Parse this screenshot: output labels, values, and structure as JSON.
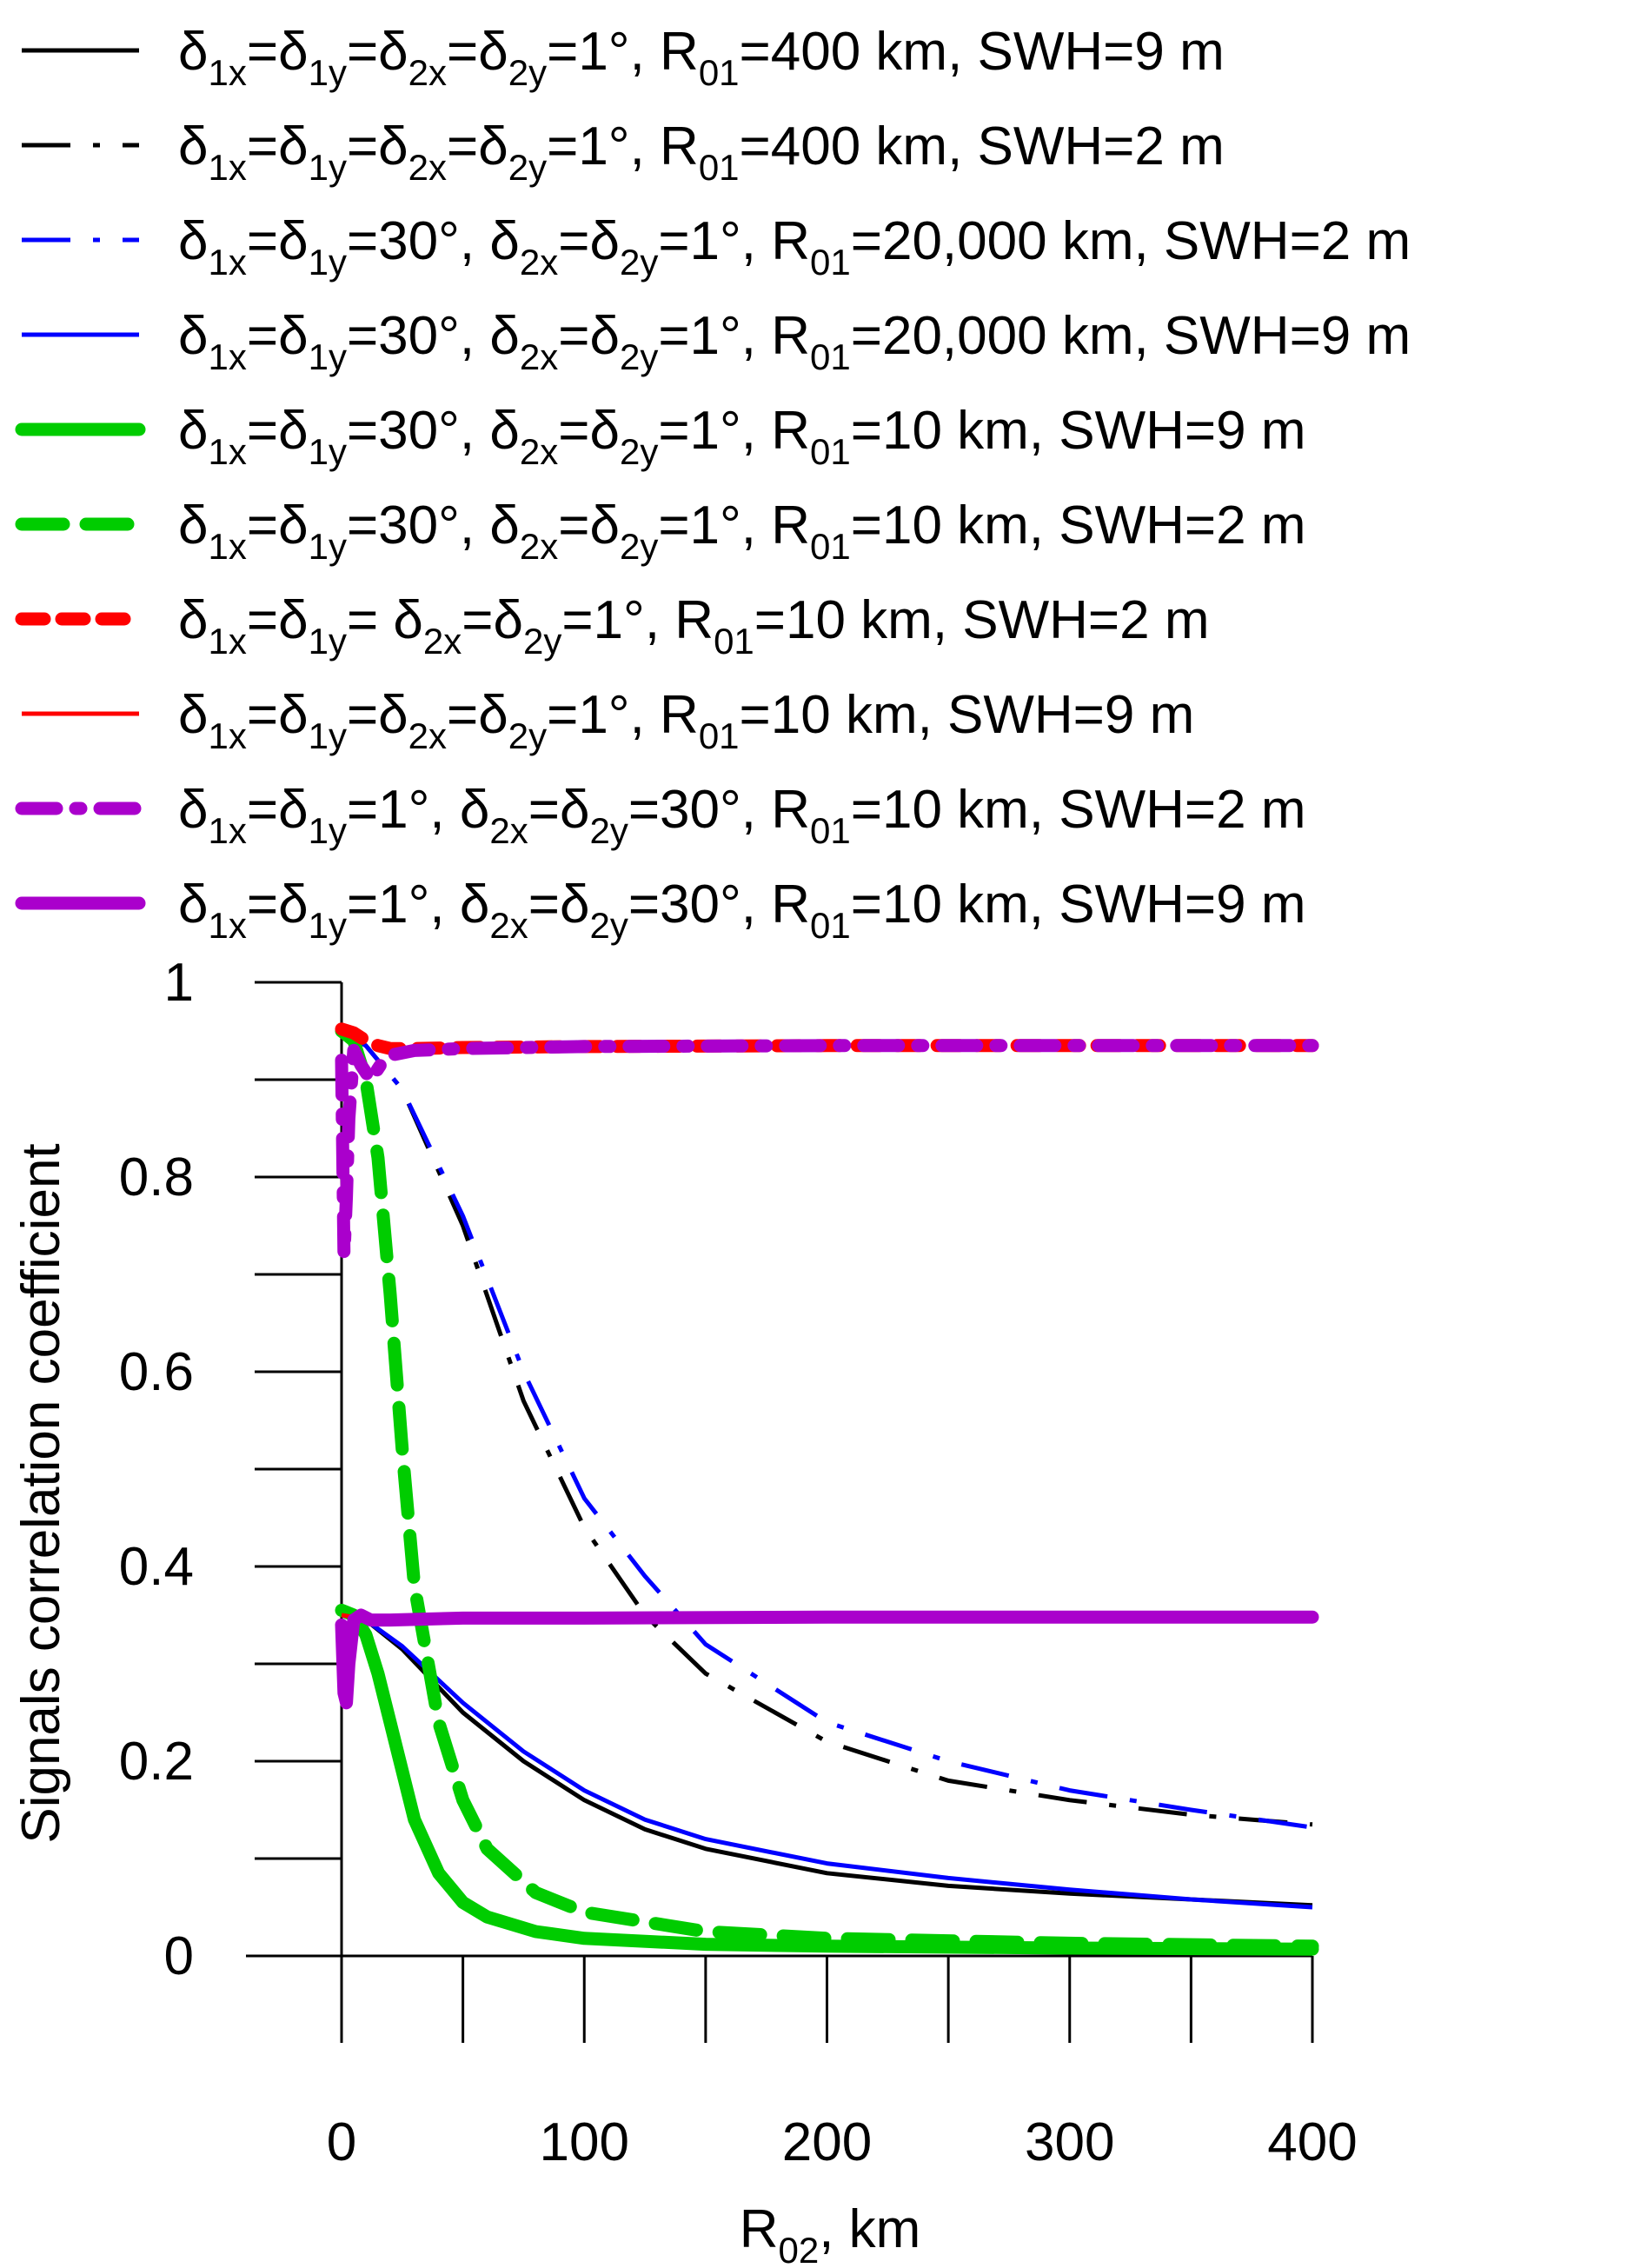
{
  "chart_data": {
    "type": "line",
    "title": "",
    "xlabel": "R02, km",
    "ylabel": "Signals correlation coefficient",
    "xlim": [
      0,
      400
    ],
    "ylim": [
      0,
      1
    ],
    "x_ticks": [
      0,
      100,
      200,
      300,
      400
    ],
    "x_tick_labels": [
      "0",
      "100",
      "200",
      "300",
      "400"
    ],
    "y_ticks": [
      0,
      0.2,
      0.4,
      0.6,
      0.8,
      1
    ],
    "y_tick_labels": [
      "0",
      "0.2",
      "0.4",
      "0.6",
      "0.8",
      "1"
    ],
    "grid": false,
    "legend_position": "top",
    "series": [
      {
        "id": "s1",
        "legend": [
          "δ",
          "1x",
          "=δ",
          "1y",
          "=δ",
          "2x",
          "=δ",
          "2y",
          "=1°, R",
          "01",
          "=400 km, SWH=9 m"
        ],
        "color": "#000000",
        "style": "solid",
        "weight": "thin",
        "x": [
          0,
          10,
          25,
          50,
          75,
          100,
          125,
          150,
          200,
          250,
          300,
          350,
          400
        ],
        "y": [
          0.355,
          0.345,
          0.315,
          0.25,
          0.2,
          0.16,
          0.13,
          0.11,
          0.085,
          0.072,
          0.064,
          0.058,
          0.052
        ]
      },
      {
        "id": "s2",
        "legend": [
          "δ",
          "1x",
          "=δ",
          "1y",
          "=δ",
          "2x",
          "=δ",
          "2y",
          "=1°, R",
          "01",
          "=400 km, SWH=2 m"
        ],
        "color": "#000000",
        "style": "dashdot",
        "weight": "thin",
        "x": [
          0,
          10,
          25,
          50,
          75,
          100,
          125,
          150,
          200,
          250,
          300,
          350,
          400
        ],
        "y": [
          0.95,
          0.935,
          0.89,
          0.75,
          0.57,
          0.44,
          0.35,
          0.29,
          0.22,
          0.18,
          0.16,
          0.145,
          0.135
        ]
      },
      {
        "id": "s3",
        "legend": [
          "δ",
          "1x",
          "=δ",
          "1y",
          "=30°, δ",
          "2x",
          "=δ",
          "2y",
          "=1°, R",
          "01",
          "=20,000 km, SWH=2 m"
        ],
        "color": "#0000ff",
        "style": "dashdot",
        "weight": "thin",
        "x": [
          0,
          10,
          25,
          50,
          75,
          100,
          125,
          150,
          200,
          250,
          300,
          350,
          400
        ],
        "y": [
          0.95,
          0.935,
          0.89,
          0.76,
          0.6,
          0.47,
          0.39,
          0.32,
          0.24,
          0.2,
          0.17,
          0.15,
          0.132
        ]
      },
      {
        "id": "s4",
        "legend": [
          "δ",
          "1x",
          "=δ",
          "1y",
          "=30°, δ",
          "2x",
          "=δ",
          "2y",
          "=1°, R",
          "01",
          "=20,000 km, SWH=9 m"
        ],
        "color": "#0000ff",
        "style": "solid",
        "weight": "thin",
        "x": [
          0,
          10,
          25,
          50,
          75,
          100,
          125,
          150,
          200,
          250,
          300,
          350,
          400
        ],
        "y": [
          0.355,
          0.345,
          0.318,
          0.26,
          0.21,
          0.17,
          0.14,
          0.12,
          0.095,
          0.08,
          0.068,
          0.058,
          0.05
        ]
      },
      {
        "id": "s5",
        "legend": [
          "δ",
          "1x",
          "=δ",
          "1y",
          "=30°, δ",
          "2x",
          "=δ",
          "2y",
          "=1°, R",
          "01",
          "=10 km, SWH=9 m"
        ],
        "color": "#00cc00",
        "style": "solid",
        "weight": "thick",
        "x": [
          0,
          5,
          10,
          15,
          20,
          30,
          40,
          50,
          60,
          80,
          100,
          150,
          200,
          300,
          400
        ],
        "y": [
          0.355,
          0.35,
          0.33,
          0.29,
          0.24,
          0.14,
          0.085,
          0.055,
          0.04,
          0.025,
          0.018,
          0.012,
          0.01,
          0.008,
          0.007
        ]
      },
      {
        "id": "s6",
        "legend": [
          "δ",
          "1x",
          "=δ",
          "1y",
          "=30°, δ",
          "2x",
          "=δ",
          "2y",
          "=1°, R",
          "01",
          "=10 km, SWH=2 m"
        ],
        "color": "#00cc00",
        "style": "dashed",
        "weight": "thick",
        "x": [
          0,
          5,
          10,
          15,
          20,
          25,
          30,
          40,
          50,
          60,
          80,
          100,
          150,
          200,
          300,
          400
        ],
        "y": [
          0.95,
          0.94,
          0.9,
          0.82,
          0.68,
          0.52,
          0.38,
          0.24,
          0.16,
          0.11,
          0.065,
          0.045,
          0.025,
          0.018,
          0.013,
          0.01
        ]
      },
      {
        "id": "s7",
        "legend": [
          "δ",
          "1x",
          "=δ",
          "1y",
          "= δ",
          "2x",
          "=δ",
          "2y",
          "=1°, R",
          "01",
          "=10 km, SWH=2 m"
        ],
        "color": "#ff0000",
        "style": "dotted",
        "weight": "thick",
        "x": [
          0,
          5,
          10,
          15,
          20,
          30,
          50,
          100,
          200,
          300,
          400
        ],
        "y": [
          0.952,
          0.948,
          0.94,
          0.935,
          0.932,
          0.932,
          0.933,
          0.934,
          0.935,
          0.935,
          0.935
        ]
      },
      {
        "id": "s8",
        "legend": [
          "δ",
          "1x",
          "=δ",
          "1y",
          "=δ",
          "2x",
          "=δ",
          "2y",
          "=1°, R",
          "01",
          "=10 km, SWH=9 m"
        ],
        "color": "#ff0000",
        "style": "solid",
        "weight": "thin",
        "x": [
          0,
          5,
          10,
          20,
          50,
          100,
          200,
          300,
          400
        ],
        "y": [
          0.35,
          0.348,
          0.346,
          0.346,
          0.347,
          0.347,
          0.348,
          0.348,
          0.348
        ]
      },
      {
        "id": "s9",
        "legend": [
          "δ",
          "1x",
          "=δ",
          "1y",
          "=1°, δ",
          "2x",
          "=δ",
          "2y",
          "=30°, R",
          "01",
          "=10 km, SWH=2 m"
        ],
        "color": "#aa00cc",
        "style": "dashdot",
        "weight": "thick",
        "x": [
          0,
          1,
          2,
          3,
          5,
          8,
          12,
          16,
          20,
          30,
          50,
          100,
          200,
          300,
          400
        ],
        "y": [
          0.92,
          0.72,
          0.78,
          0.86,
          0.93,
          0.915,
          0.9,
          0.915,
          0.925,
          0.93,
          0.932,
          0.934,
          0.935,
          0.935,
          0.935
        ]
      },
      {
        "id": "s10",
        "legend": [
          "δ",
          "1x",
          "=δ",
          "1y",
          "=1°, δ",
          "2x",
          "=δ",
          "2y",
          "=30°, R",
          "01",
          "=10 km, SWH=9 m"
        ],
        "color": "#aa00cc",
        "style": "solid",
        "weight": "thick",
        "x": [
          0,
          1,
          2,
          3,
          5,
          8,
          12,
          20,
          50,
          100,
          200,
          300,
          400
        ],
        "y": [
          0.34,
          0.27,
          0.26,
          0.3,
          0.345,
          0.35,
          0.345,
          0.345,
          0.347,
          0.347,
          0.348,
          0.348,
          0.348
        ]
      }
    ]
  },
  "axis_labels": {
    "y": "Signals correlation coefficient",
    "x_main": "R",
    "x_sub": "02",
    "x_tail": ", km"
  }
}
